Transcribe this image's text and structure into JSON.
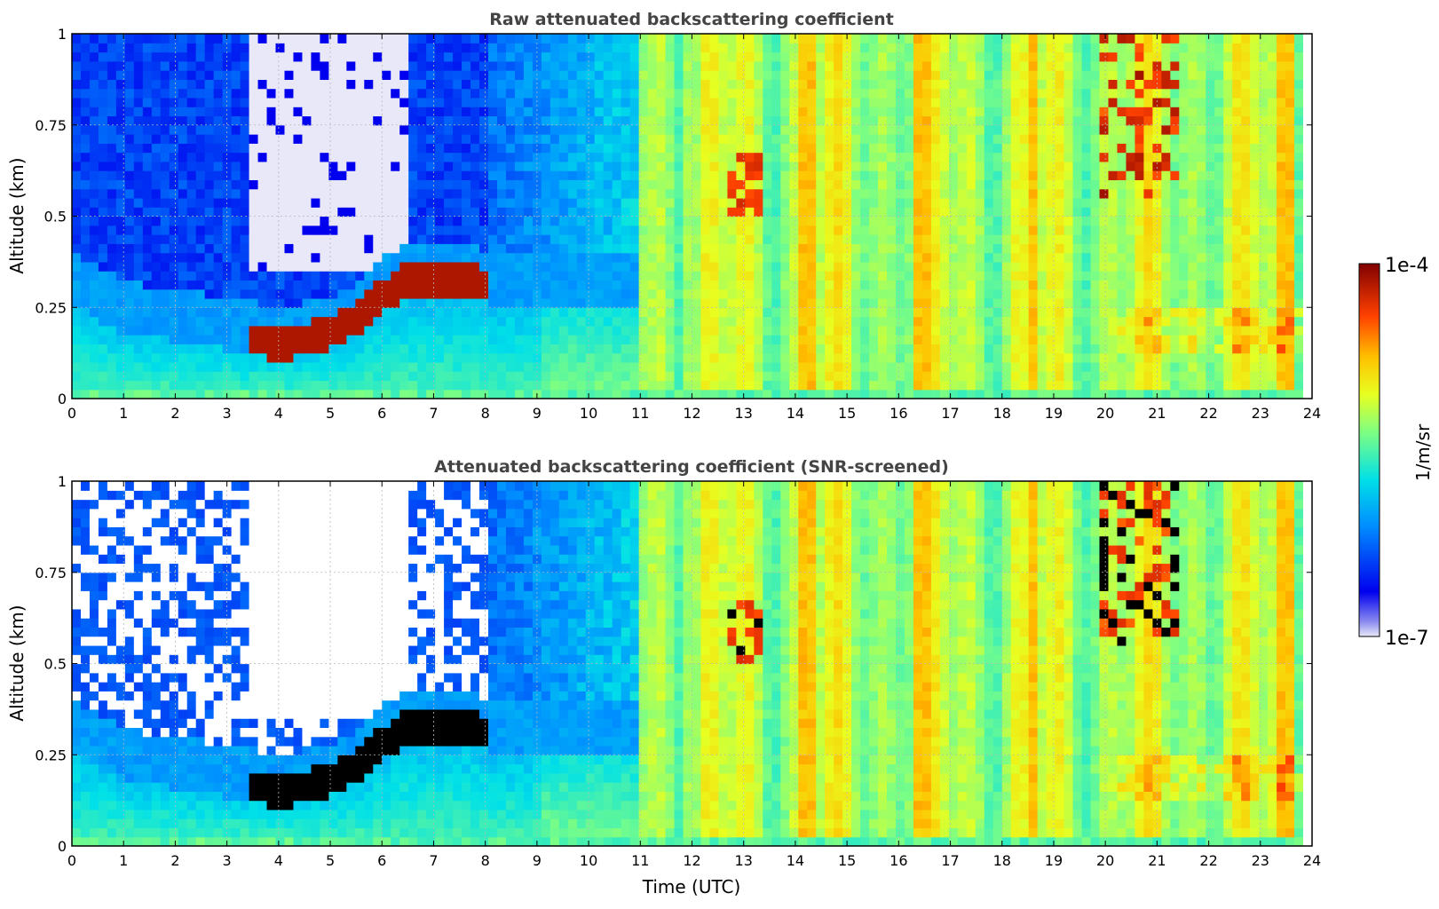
{
  "figure": {
    "colorbar": {
      "label": "1/m/sr",
      "tick_labels": [
        "1e-4",
        "1e-7"
      ],
      "scale": "log",
      "vmin": 1e-07,
      "vmax": 0.0001,
      "colormap": "jet-like (white → blue → cyan → green → yellow → orange → red → dark red)"
    }
  },
  "chart_data": [
    {
      "type": "heatmap",
      "title": "Raw attenuated backscattering coefficient",
      "xlabel": "",
      "ylabel": "Altitude (km)",
      "xlim": [
        0,
        24
      ],
      "ylim": [
        0,
        1
      ],
      "x_ticks": [
        "0",
        "1",
        "2",
        "3",
        "4",
        "5",
        "6",
        "7",
        "8",
        "9",
        "10",
        "11",
        "12",
        "13",
        "14",
        "15",
        "16",
        "17",
        "18",
        "19",
        "20",
        "21",
        "22",
        "23",
        "24"
      ],
      "y_ticks": [
        "0",
        "0.25",
        "0.5",
        "0.75",
        "1"
      ],
      "grid": true,
      "description_values": {
        "clear_night_layer_top_km": [
          [
            0,
            0.3
          ],
          [
            3.5,
            0.17
          ],
          [
            5,
            0.2
          ],
          [
            6.5,
            0.35
          ],
          [
            7,
            0.32
          ],
          [
            8,
            0.33
          ]
        ],
        "daytime_high_values_after_utc": 10.9,
        "data_end_utc": 23.8
      }
    },
    {
      "type": "heatmap",
      "title": "Attenuated backscattering coefficient (SNR-screened)",
      "xlabel": "Time (UTC)",
      "ylabel": "Altitude (km)",
      "xlim": [
        0,
        24
      ],
      "ylim": [
        0,
        1
      ],
      "x_ticks": [
        "0",
        "1",
        "2",
        "3",
        "4",
        "5",
        "6",
        "7",
        "8",
        "9",
        "10",
        "11",
        "12",
        "13",
        "14",
        "15",
        "16",
        "17",
        "18",
        "19",
        "20",
        "21",
        "22",
        "23",
        "24"
      ],
      "y_ticks": [
        "0",
        "0.25",
        "0.5",
        "0.75",
        "1"
      ],
      "grid": true,
      "masked_color": "#ffffff",
      "saturated_color": "#000000"
    }
  ]
}
